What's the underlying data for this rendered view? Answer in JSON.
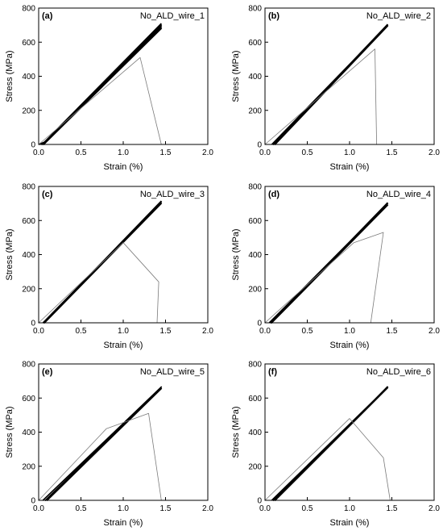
{
  "chart_data": [
    {
      "type": "line",
      "panel_label": "(a)",
      "title": "No_ALD_wire_1",
      "xlabel": "Strain (%)",
      "ylabel": "Stress (MPa)",
      "xlim": [
        0.0,
        2.0
      ],
      "ylim": [
        0,
        800
      ],
      "xticks": [
        "0.0",
        "0.5",
        "1.0",
        "1.5",
        "2.0"
      ],
      "yticks": [
        "0",
        "200",
        "400",
        "600",
        "800"
      ],
      "grid": false,
      "series": [
        {
          "style": "bold",
          "x": [
            0.0,
            0.1,
            1.45,
            0.08,
            1.45,
            0.06,
            1.45,
            0.04,
            1.45
          ],
          "y": [
            0,
            20,
            680,
            10,
            690,
            0,
            700,
            0,
            710
          ]
        },
        {
          "style": "thin",
          "x": [
            0.0,
            1.2,
            1.45
          ],
          "y": [
            0,
            510,
            0
          ]
        }
      ]
    },
    {
      "type": "line",
      "panel_label": "(b)",
      "title": "No_ALD_wire_2",
      "xlabel": "Strain (%)",
      "ylabel": "Stress (MPa)",
      "xlim": [
        0.0,
        2.0
      ],
      "ylim": [
        0,
        800
      ],
      "xticks": [
        "0.0",
        "0.5",
        "1.0",
        "1.5",
        "2.0"
      ],
      "yticks": [
        "0",
        "200",
        "400",
        "600",
        "800"
      ],
      "grid": false,
      "series": [
        {
          "style": "bold",
          "x": [
            0.08,
            1.45,
            0.12,
            1.45,
            0.1,
            1.45
          ],
          "y": [
            0,
            700,
            0,
            695,
            0,
            705
          ]
        },
        {
          "style": "thin",
          "x": [
            0.0,
            1.3,
            1.32
          ],
          "y": [
            0,
            560,
            0
          ]
        }
      ]
    },
    {
      "type": "line",
      "panel_label": "(c)",
      "title": "No_ALD_wire_3",
      "xlabel": "Strain (%)",
      "ylabel": "Stress (MPa)",
      "xlim": [
        0.0,
        2.0
      ],
      "ylim": [
        0,
        800
      ],
      "xticks": [
        "0.0",
        "0.5",
        "1.0",
        "1.5",
        "2.0"
      ],
      "yticks": [
        "0",
        "200",
        "400",
        "600",
        "800"
      ],
      "grid": false,
      "series": [
        {
          "style": "bold",
          "x": [
            0.05,
            1.45,
            0.07,
            1.45,
            0.06,
            1.45
          ],
          "y": [
            0,
            710,
            0,
            700,
            0,
            715
          ]
        },
        {
          "style": "thin",
          "x": [
            0.0,
            1.0,
            1.42,
            1.4
          ],
          "y": [
            0,
            470,
            240,
            0
          ]
        }
      ]
    },
    {
      "type": "line",
      "panel_label": "(d)",
      "title": "No_ALD_wire_4",
      "xlabel": "Strain (%)",
      "ylabel": "Stress (MPa)",
      "xlim": [
        0.0,
        2.0
      ],
      "ylim": [
        0,
        800
      ],
      "xticks": [
        "0.0",
        "0.5",
        "1.0",
        "1.5",
        "2.0"
      ],
      "yticks": [
        "0",
        "200",
        "400",
        "600",
        "800"
      ],
      "grid": false,
      "series": [
        {
          "style": "bold",
          "x": [
            0.05,
            1.45,
            0.08,
            1.45,
            0.07,
            1.45
          ],
          "y": [
            0,
            700,
            0,
            690,
            0,
            705
          ]
        },
        {
          "style": "thin",
          "x": [
            0.0,
            1.05,
            1.4,
            1.25
          ],
          "y": [
            0,
            470,
            530,
            0
          ]
        }
      ]
    },
    {
      "type": "line",
      "panel_label": "(e)",
      "title": "No_ALD_wire_5",
      "xlabel": "Strain (%)",
      "ylabel": "Stress (MPa)",
      "xlim": [
        0.0,
        2.0
      ],
      "ylim": [
        0,
        800
      ],
      "xticks": [
        "0.0",
        "0.5",
        "1.0",
        "1.5",
        "2.0"
      ],
      "yticks": [
        "0",
        "200",
        "400",
        "600",
        "800"
      ],
      "grid": false,
      "series": [
        {
          "style": "bold",
          "x": [
            0.05,
            1.45,
            0.08,
            1.45,
            0.1,
            1.45
          ],
          "y": [
            0,
            665,
            0,
            655,
            0,
            660
          ]
        },
        {
          "style": "thin",
          "x": [
            0.0,
            0.8,
            1.3,
            1.45
          ],
          "y": [
            0,
            420,
            510,
            0
          ]
        }
      ]
    },
    {
      "type": "line",
      "panel_label": "(f)",
      "title": "No_ALD_wire_6",
      "xlabel": "Strain (%)",
      "ylabel": "Stress (MPa)",
      "xlim": [
        0.0,
        2.0
      ],
      "ylim": [
        0,
        800
      ],
      "xticks": [
        "0.0",
        "0.5",
        "1.0",
        "1.5",
        "2.0"
      ],
      "yticks": [
        "0",
        "200",
        "400",
        "600",
        "800"
      ],
      "grid": false,
      "series": [
        {
          "style": "bold",
          "x": [
            0.08,
            1.45,
            0.1,
            1.45,
            0.12,
            1.45
          ],
          "y": [
            0,
            665,
            0,
            660,
            0,
            668
          ]
        },
        {
          "style": "thin",
          "x": [
            0.0,
            1.0,
            1.4,
            1.48
          ],
          "y": [
            0,
            480,
            250,
            0
          ]
        }
      ]
    }
  ]
}
